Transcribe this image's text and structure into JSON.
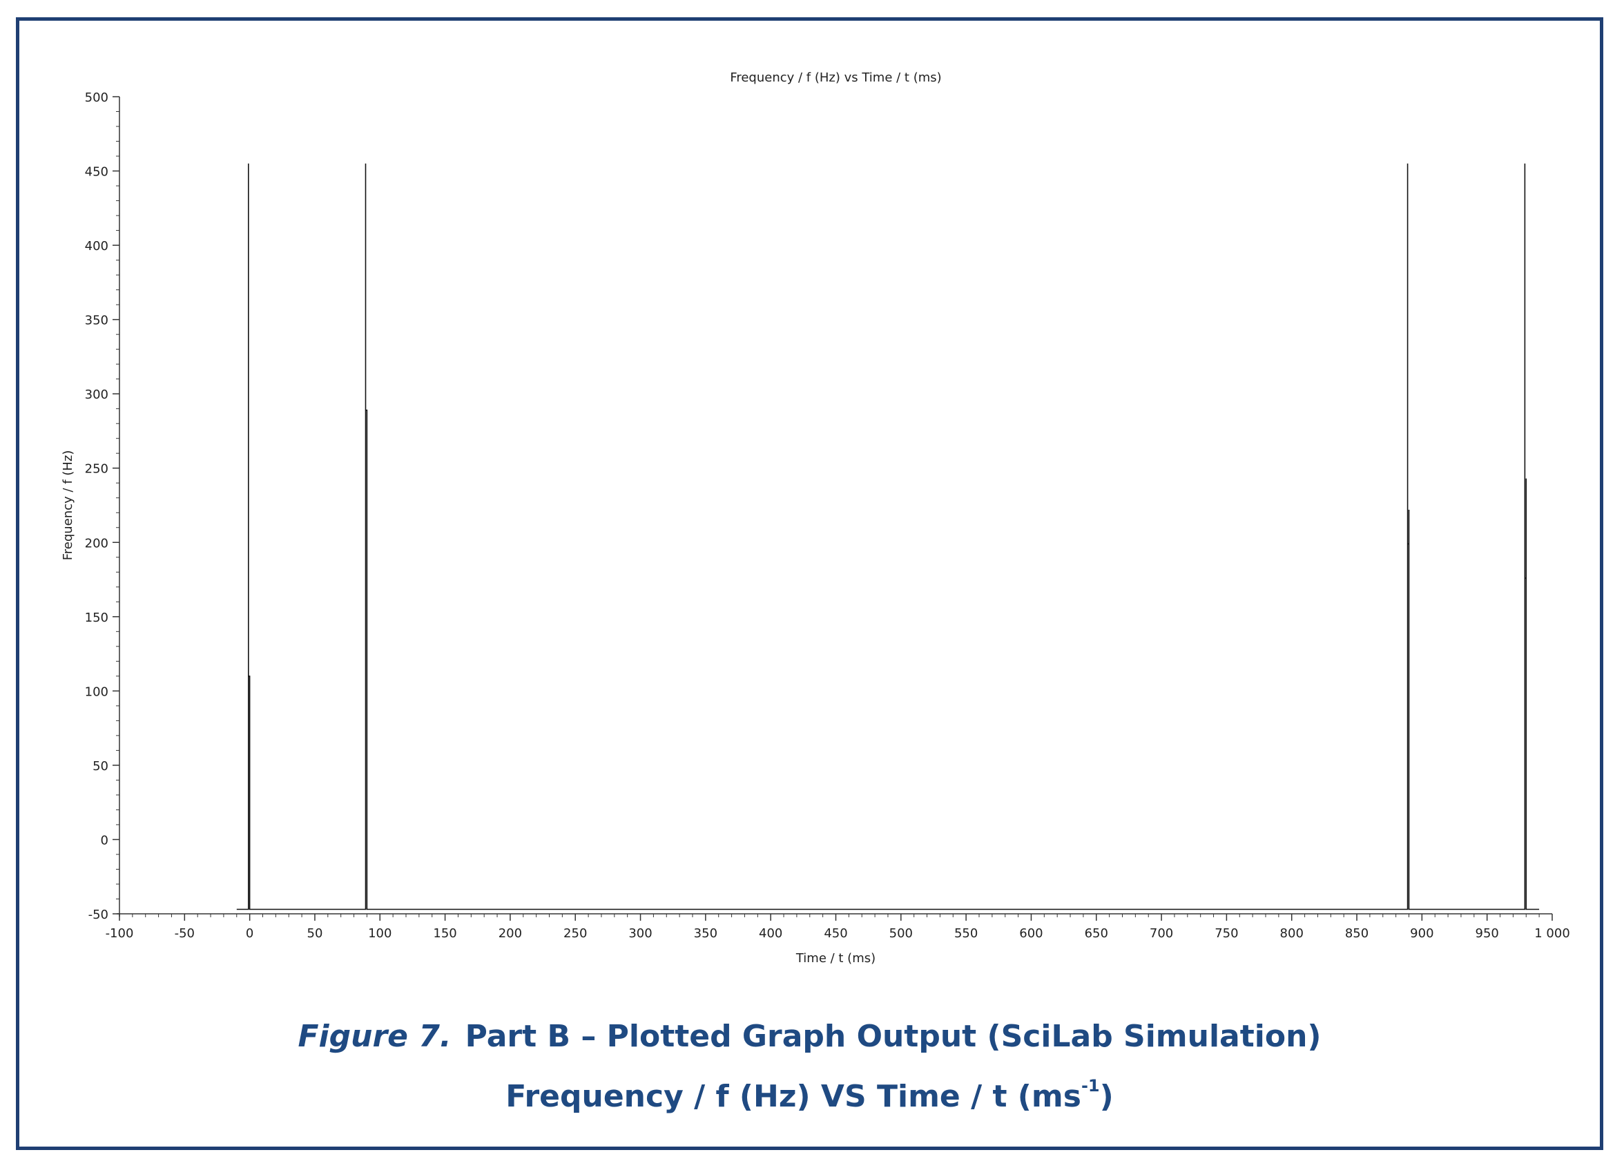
{
  "chart_data": {
    "type": "line",
    "title": "Frequency / f (Hz) vs Time / t (ms)",
    "xlabel": "Time / t (ms)",
    "ylabel": "Frequency / f (Hz)",
    "xlim": [
      -100,
      1000
    ],
    "ylim": [
      -50,
      500
    ],
    "xticks": [
      -100,
      -50,
      0,
      50,
      100,
      150,
      200,
      250,
      300,
      350,
      400,
      450,
      500,
      550,
      600,
      650,
      700,
      750,
      800,
      850,
      900,
      950,
      1000
    ],
    "xtick_labels": [
      "-100",
      "-50",
      "0",
      "50",
      "100",
      "150",
      "200",
      "250",
      "300",
      "350",
      "400",
      "450",
      "500",
      "550",
      "600",
      "650",
      "700",
      "750",
      "800",
      "850",
      "900",
      "950",
      "1 000"
    ],
    "yticks": [
      -50,
      0,
      50,
      100,
      150,
      200,
      250,
      300,
      350,
      400,
      450,
      500
    ],
    "ytick_labels": [
      "-50",
      "0",
      "50",
      "100",
      "150",
      "200",
      "250",
      "300",
      "350",
      "400",
      "450",
      "500"
    ],
    "grid": false,
    "line_color": "#111111",
    "series": [
      {
        "x": [
          -10,
          -1,
          -1,
          -1,
          -1,
          0,
          0,
          0,
          89,
          89,
          89,
          90,
          90,
          90,
          889,
          889,
          889,
          890,
          890,
          890,
          979,
          979,
          979,
          980,
          980,
          980,
          990
        ],
        "y": [
          -47,
          -47,
          455,
          309,
          110,
          110,
          -47,
          -47,
          -47,
          455,
          289,
          289,
          132,
          -47,
          -47,
          455,
          199,
          199,
          222,
          -47,
          -47,
          455,
          176,
          176,
          243,
          -47,
          -47
        ]
      }
    ]
  },
  "caption": {
    "figure_label": "Figure 7.",
    "line1": "Part B – Plotted Graph Output (SciLab Simulation)",
    "line2_main": "Frequency / f (Hz) VS Time / t (ms",
    "line2_sup": "-1",
    "line2_end": ")"
  },
  "colors": {
    "border": "#1f3f73",
    "caption": "#1f4a82"
  }
}
